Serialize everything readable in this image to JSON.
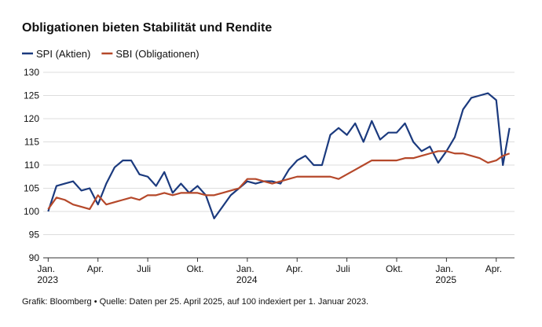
{
  "chart_data": {
    "type": "line",
    "title": "Obligationen bieten Stabilität und Rendite",
    "footnote": "Grafik: Bloomberg • Quelle: Daten per 25. April 2025, auf 100 indexiert per 1. Januar 2023.",
    "x": [
      0,
      0.5,
      1,
      1.5,
      2,
      2.5,
      3,
      3.5,
      4,
      4.5,
      5,
      5.5,
      6,
      6.5,
      7,
      7.5,
      8,
      8.5,
      9,
      9.5,
      10,
      10.5,
      11,
      11.5,
      12,
      12.5,
      13,
      13.5,
      14,
      14.5,
      15,
      15.5,
      16,
      16.5,
      17,
      17.5,
      18,
      18.5,
      19,
      19.5,
      20,
      20.5,
      21,
      21.5,
      22,
      22.5,
      23,
      23.5,
      24,
      24.5,
      25,
      25.5,
      26,
      26.5,
      27,
      27.4,
      27.8
    ],
    "series": [
      {
        "name": "SPI (Aktien)",
        "color": "#1b3a7e",
        "values": [
          100,
          105.5,
          106,
          106.5,
          104.5,
          105,
          101.5,
          106,
          109.5,
          111,
          111,
          108,
          107.5,
          105.5,
          108.5,
          104,
          106,
          104,
          105.5,
          103.5,
          98.5,
          101,
          103.5,
          105,
          106.5,
          106,
          106.5,
          106.5,
          106,
          109,
          111,
          112,
          110,
          110,
          116.5,
          118,
          116.5,
          119,
          115,
          119.5,
          115.5,
          117,
          117,
          119,
          115,
          113,
          114,
          110.5,
          113,
          116,
          122,
          124.5,
          125,
          125.5,
          124,
          110,
          118
        ]
      },
      {
        "name": "SBI (Obligationen)",
        "color": "#b5482a",
        "values": [
          100.5,
          103,
          102.5,
          101.5,
          101,
          100.5,
          103.5,
          101.5,
          102,
          102.5,
          103,
          102.5,
          103.5,
          103.5,
          104,
          103.5,
          104,
          104,
          104,
          103.5,
          103.5,
          104,
          104.5,
          105,
          107,
          107,
          106.5,
          106,
          106.5,
          107,
          107.5,
          107.5,
          107.5,
          107.5,
          107.5,
          107,
          108,
          109,
          110,
          111,
          111,
          111,
          111,
          111.5,
          111.5,
          112,
          112.5,
          113,
          113,
          112.5,
          112.5,
          112,
          111.5,
          110.5,
          111,
          112,
          112.5
        ]
      }
    ],
    "xlim": [
      -0.3,
      28.1
    ],
    "xticks": [
      {
        "value": 0,
        "label": "Jan.\n2023"
      },
      {
        "value": 3,
        "label": "Apr."
      },
      {
        "value": 6,
        "label": "Juli"
      },
      {
        "value": 9,
        "label": "Okt."
      },
      {
        "value": 12,
        "label": "Jan.\n2024"
      },
      {
        "value": 15,
        "label": "Apr."
      },
      {
        "value": 18,
        "label": "Juli"
      },
      {
        "value": 21,
        "label": "Okt."
      },
      {
        "value": 24,
        "label": "Jan.\n2025"
      },
      {
        "value": 27,
        "label": "Apr."
      }
    ],
    "ylim": [
      90,
      130
    ],
    "yticks": [
      90,
      95,
      100,
      105,
      110,
      115,
      120,
      125,
      130
    ],
    "grid": true
  }
}
